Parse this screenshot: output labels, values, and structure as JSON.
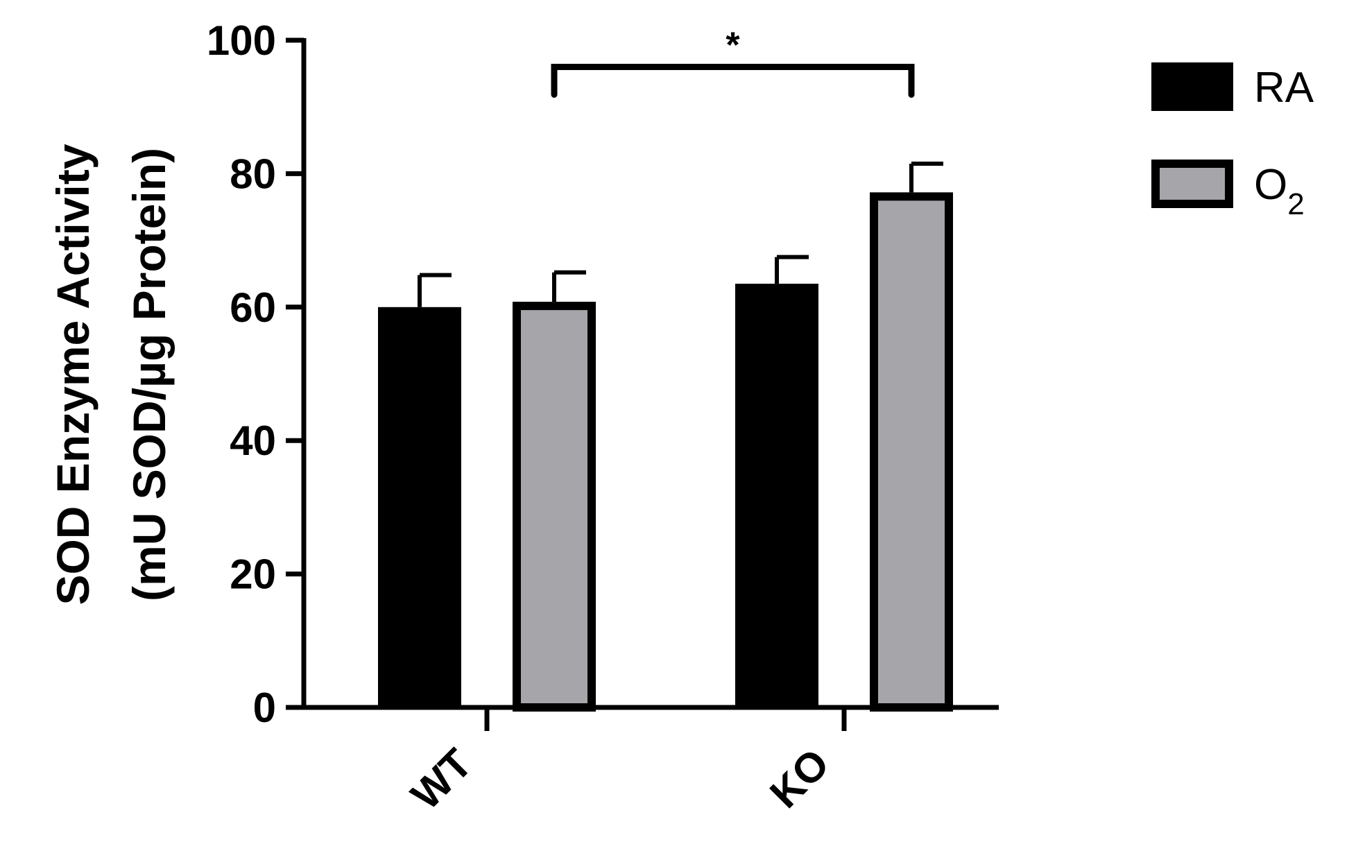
{
  "chart_data": {
    "type": "bar",
    "title": "",
    "xlabel": "",
    "ylabel_line1": "SOD Enzyme Activity",
    "ylabel_line2": "(mU SOD/µg Protein)",
    "categories": [
      "WT",
      "KO"
    ],
    "series": [
      {
        "name": "RA",
        "subscript": "",
        "color": "#000000",
        "values": [
          60.0,
          63.5
        ],
        "errors": [
          4.8,
          4.0
        ]
      },
      {
        "name": "O",
        "subscript": "2",
        "color": "#a6a6aa",
        "values": [
          60.8,
          77.2
        ],
        "errors": [
          4.4,
          4.3
        ]
      }
    ],
    "ylim": [
      0,
      100
    ],
    "yticks": [
      0,
      20,
      40,
      60,
      80,
      100
    ],
    "grid": false,
    "legend": "top-right",
    "significance": [
      {
        "label": "*",
        "from": {
          "category": "WT",
          "series": "O"
        },
        "to": {
          "category": "KO",
          "series": "O"
        },
        "y": 96
      }
    ]
  }
}
